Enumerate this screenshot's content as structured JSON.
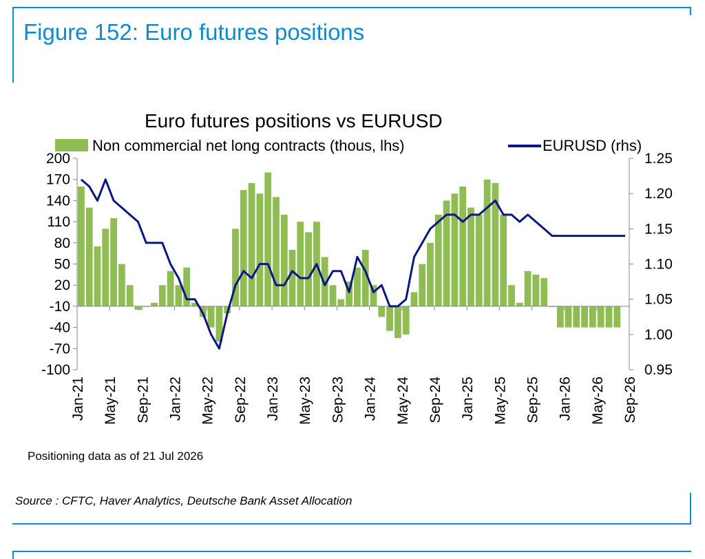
{
  "figure_title": "Figure 152: Euro futures positions",
  "footnote": "Positioning data as of 21 Jul 2026",
  "source": "Source : CFTC, Haver Analytics, Deutsche Bank Asset Allocation",
  "colors": {
    "accent": "#0b8bd0",
    "bars": "#8fbc53",
    "line": "#0a1683"
  },
  "chart_data": {
    "type": "bar+line",
    "title": "Euro futures positions vs EURUSD",
    "legend_position": "top",
    "grid": false,
    "x_tick_labels": [
      "Jan-21",
      "May-21",
      "Sep-21",
      "Jan-22",
      "May-22",
      "Sep-22",
      "Jan-23",
      "May-23",
      "Sep-23",
      "Jan-24",
      "May-24",
      "Sep-24",
      "Jan-25",
      "May-25",
      "Sep-25",
      "Jan-26",
      "May-26",
      "Sep-26"
    ],
    "x_range": [
      "Jan-21",
      "Sep-26"
    ],
    "y_left": {
      "min": -100,
      "max": 200,
      "ticks": [
        200,
        170,
        140,
        110,
        80,
        50,
        20,
        -10,
        -40,
        -70,
        -100
      ]
    },
    "y_right": {
      "min": 0.95,
      "max": 1.25,
      "ticks": [
        "1.25",
        "1.20",
        "1.15",
        "1.10",
        "1.05",
        "1.00",
        "0.95"
      ]
    },
    "series": [
      {
        "name": "Non commercial net long contracts (thous, lhs)",
        "kind": "bar",
        "axis": "left",
        "x_months": [
          0,
          1,
          2,
          3,
          4,
          5,
          6,
          7,
          8,
          9,
          10,
          11,
          12,
          13,
          14,
          15,
          16,
          17,
          18,
          19,
          20,
          21,
          22,
          23,
          24,
          25,
          26,
          27,
          28,
          29,
          30,
          31,
          32,
          33,
          34,
          35,
          36,
          37,
          38,
          39,
          40,
          41,
          42,
          43,
          44,
          45,
          46,
          47,
          48,
          49,
          50,
          51,
          52,
          53,
          54,
          55,
          56,
          57,
          58,
          59,
          60,
          61,
          62,
          63,
          64,
          65,
          66
        ],
        "values": [
          160,
          130,
          75,
          100,
          115,
          50,
          20,
          -15,
          -10,
          -5,
          20,
          40,
          20,
          45,
          -5,
          -25,
          -40,
          -60,
          -20,
          100,
          155,
          165,
          150,
          180,
          145,
          120,
          70,
          110,
          95,
          110,
          60,
          20,
          0,
          25,
          45,
          70,
          20,
          -25,
          -45,
          -55,
          -50,
          10,
          50,
          80,
          120,
          140,
          150,
          160,
          130,
          120,
          170,
          165,
          120,
          20,
          -5,
          40,
          35,
          30,
          -10,
          -40,
          -40,
          -40,
          -40,
          -40,
          -40,
          -40,
          -40
        ]
      },
      {
        "name": "EURUSD (rhs)",
        "kind": "line",
        "axis": "right",
        "x_months": [
          0,
          1,
          2,
          3,
          4,
          5,
          6,
          7,
          8,
          9,
          10,
          11,
          12,
          13,
          14,
          15,
          16,
          17,
          18,
          19,
          20,
          21,
          22,
          23,
          24,
          25,
          26,
          27,
          28,
          29,
          30,
          31,
          32,
          33,
          34,
          35,
          36,
          37,
          38,
          39,
          40,
          41,
          42,
          43,
          44,
          45,
          46,
          47,
          48,
          49,
          50,
          51,
          52,
          53,
          54,
          55,
          56,
          57,
          58,
          59,
          60,
          61,
          62,
          63,
          64,
          65,
          66,
          67
        ],
        "values": [
          1.22,
          1.21,
          1.19,
          1.22,
          1.19,
          1.18,
          1.17,
          1.16,
          1.13,
          1.13,
          1.13,
          1.1,
          1.08,
          1.05,
          1.05,
          1.03,
          1.0,
          0.98,
          1.03,
          1.07,
          1.09,
          1.08,
          1.1,
          1.1,
          1.07,
          1.07,
          1.09,
          1.08,
          1.08,
          1.1,
          1.07,
          1.09,
          1.09,
          1.06,
          1.11,
          1.09,
          1.06,
          1.07,
          1.04,
          1.04,
          1.05,
          1.11,
          1.13,
          1.15,
          1.16,
          1.17,
          1.17,
          1.16,
          1.17,
          1.17,
          1.18,
          1.19,
          1.17,
          1.17,
          1.16,
          1.17,
          1.16,
          1.15,
          1.14,
          1.14,
          1.14,
          1.14,
          1.14,
          1.14,
          1.14,
          1.14,
          1.14,
          1.14
        ]
      }
    ]
  }
}
